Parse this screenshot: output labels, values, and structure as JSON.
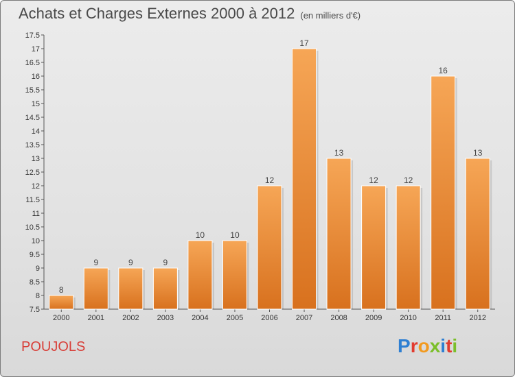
{
  "header": {
    "title": "Achats et Charges Externes 2000 à 2012",
    "subtitle": "(en milliers d'€)"
  },
  "footer": {
    "commune": "POUJOLS",
    "logo_text": "Proxiti"
  },
  "colors": {
    "bar_light": "#f6a656",
    "bar_dark": "#d8711e",
    "commune_text": "#d8403a",
    "logo_letters": [
      "#2e7fd2",
      "#e23b2f",
      "#f29a1f",
      "#7bbf2a",
      "#2e7fd2",
      "#e23b2f",
      "#7bbf2a"
    ]
  },
  "chart_data": {
    "type": "bar",
    "title": "Achats et Charges Externes 2000 à 2012",
    "subtitle": "(en milliers d'€)",
    "categories": [
      "2000",
      "2001",
      "2002",
      "2003",
      "2004",
      "2005",
      "2006",
      "2007",
      "2008",
      "2009",
      "2010",
      "2011",
      "2012"
    ],
    "values": [
      8,
      9,
      9,
      9,
      10,
      10,
      12,
      17,
      13,
      12,
      12,
      16,
      13
    ],
    "data_labels": [
      "8",
      "9",
      "9",
      "9",
      "10",
      "10",
      "12",
      "17",
      "13",
      "12",
      "12",
      "16",
      "13"
    ],
    "ylim": [
      7.5,
      17.5
    ],
    "yticks": [
      7.5,
      8,
      8.5,
      9,
      9.5,
      10,
      10.5,
      11,
      11.5,
      12,
      12.5,
      13,
      13.5,
      14,
      14.5,
      15,
      15.5,
      16,
      16.5,
      17,
      17.5
    ],
    "ytick_labels": [
      "7.5",
      "8",
      "8.5",
      "9",
      "9.5",
      "10",
      "10.5",
      "11",
      "11.5",
      "12",
      "12.5",
      "13",
      "13.5",
      "14",
      "14.5",
      "15",
      "15.5",
      "16",
      "16.5",
      "17",
      "17.5"
    ],
    "xlabel": "",
    "ylabel": "",
    "grid": false
  }
}
